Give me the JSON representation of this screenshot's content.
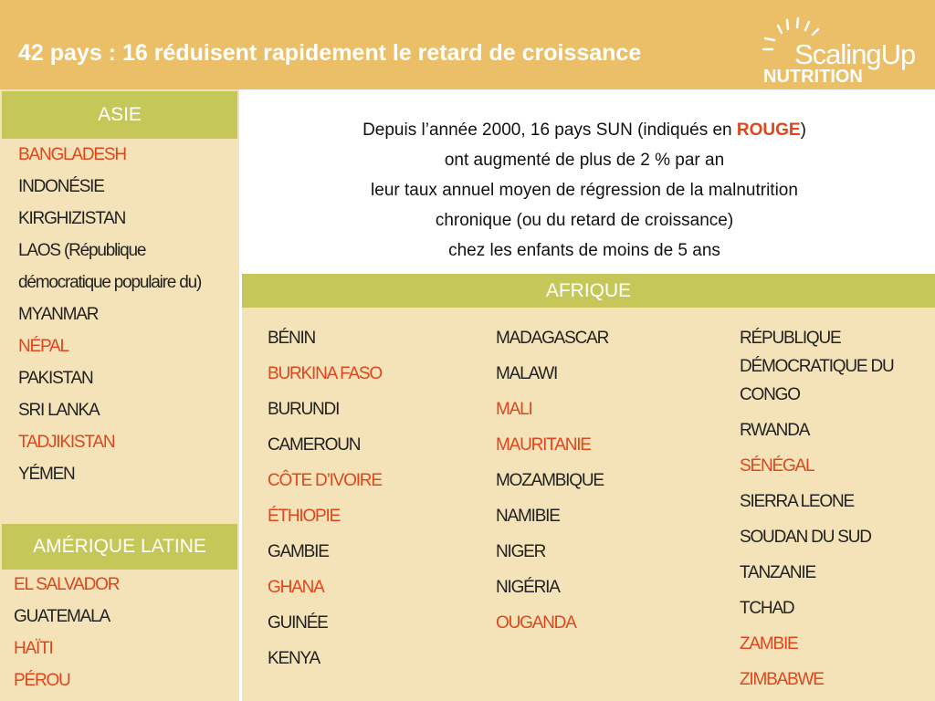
{
  "header": {
    "title": "42 pays : 16 réduisent rapidement le retard de croissance",
    "logo_top": "ScalingUp",
    "logo_bottom": "NUTRITION"
  },
  "asia": {
    "heading": "ASIE",
    "items": [
      {
        "label": "BANGLADESH",
        "color": "#e0451c"
      },
      {
        "label": "INDONÉSIE",
        "color": "#222222"
      },
      {
        "label": "KIRGHIZISTAN",
        "color": "#222222"
      },
      {
        "label": "LAOS (République démocratique populaire du)",
        "color": "#222222"
      },
      {
        "label": "MYANMAR",
        "color": "#222222"
      },
      {
        "label": "NÉPAL",
        "color": "#e0451c"
      },
      {
        "label": "PAKISTAN",
        "color": "#222222"
      },
      {
        "label": "SRI LANKA",
        "color": "#222222"
      },
      {
        "label": "TADJIKISTAN",
        "color": "#e0451c"
      },
      {
        "label": "YÉMEN",
        "color": "#222222"
      }
    ]
  },
  "latin_america": {
    "heading": "AMÉRIQUE LATINE",
    "items": [
      {
        "label": "EL SALVADOR",
        "color": "#e0451c"
      },
      {
        "label": "GUATEMALA",
        "color": "#222222"
      },
      {
        "label": "HAÏTI",
        "color": "#e0451c"
      },
      {
        "label": "PÉROU",
        "color": "#e0451c"
      }
    ]
  },
  "intro": {
    "first": [
      "Depuis l’année 2000, 16 pays SUN (indiqués en ",
      "ROUGE",
      ")"
    ],
    "lines": [
      "ont augmenté de plus de 2 % par an",
      "leur taux annuel moyen de régression de la malnutrition",
      "chronique (ou du retard de croissance)",
      "chez les enfants de moins de 5 ans"
    ]
  },
  "africa": {
    "heading": "AFRIQUE",
    "columns": [
      [
        {
          "label": "BÉNIN",
          "color": "#222222"
        },
        {
          "label": "BURKINA FASO",
          "color": "#e0451c"
        },
        {
          "label": "BURUNDI",
          "color": "#222222"
        },
        {
          "label": "CAMEROUN",
          "color": "#222222"
        },
        {
          "label": "CÔTE D’IVOIRE",
          "color": "#e0451c"
        },
        {
          "label": "ÉTHIOPIE",
          "color": "#e0451c"
        },
        {
          "label": "GAMBIE",
          "color": "#222222"
        },
        {
          "label": "GHANA",
          "color": "#e0451c"
        },
        {
          "label": "GUINÉE",
          "color": "#222222"
        },
        {
          "label": "KENYA",
          "color": "#222222"
        }
      ],
      [
        {
          "label": "MADAGASCAR",
          "color": "#222222"
        },
        {
          "label": "MALAWI",
          "color": "#222222"
        },
        {
          "label": "MALI",
          "color": "#e0451c"
        },
        {
          "label": "MAURITANIE",
          "color": "#e0451c"
        },
        {
          "label": "MOZAMBIQUE",
          "color": "#222222"
        },
        {
          "label": "NAMIBIE",
          "color": "#222222"
        },
        {
          "label": "NIGER",
          "color": "#222222"
        },
        {
          "label": "NIGÉRIA",
          "color": "#222222"
        },
        {
          "label": "OUGANDA",
          "color": "#e0451c"
        }
      ],
      [
        {
          "label": "RÉPUBLIQUE DÉMOCRATIQUE DU CONGO",
          "color": "#222222"
        },
        {
          "label": "RWANDA",
          "color": "#222222"
        },
        {
          "label": "SÉNÉGAL",
          "color": "#e0451c"
        },
        {
          "label": "SIERRA LEONE",
          "color": "#222222"
        },
        {
          "label": "SOUDAN DU SUD",
          "color": "#222222"
        },
        {
          "label": "TANZANIE",
          "color": "#222222"
        },
        {
          "label": "TCHAD",
          "color": "#222222"
        },
        {
          "label": "ZAMBIE",
          "color": "#e0451c"
        },
        {
          "label": "ZIMBABWE",
          "color": "#e0451c"
        }
      ]
    ]
  }
}
